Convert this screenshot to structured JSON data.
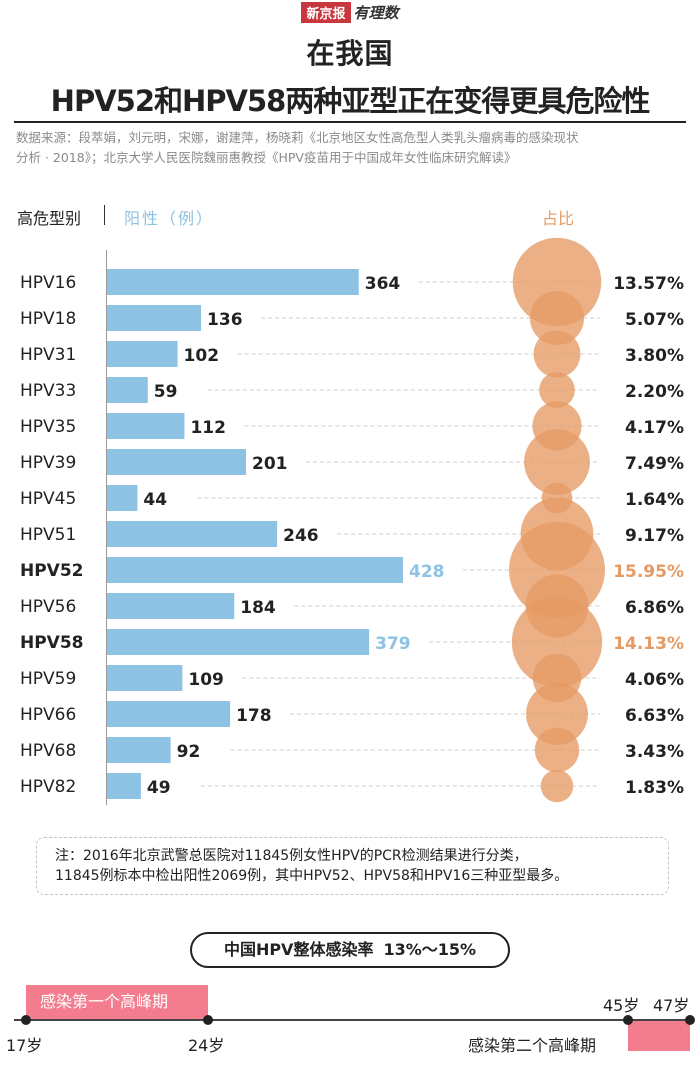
{
  "brand": {
    "name": "新京报",
    "sub": "有理数"
  },
  "title": {
    "line1": "在我国",
    "line2": "HPV52和HPV58两种亚型正在变得更具危险性"
  },
  "source": {
    "line1": "数据来源：段萃娟，刘元明，宋娜，谢建萍，杨晓莉《北京地区女性高危型人类乳头瘤病毒的感染现状",
    "line2": "分析 · 2018》；北京大学人民医院魏丽惠教授《HPV疫苗用于中国成年女性临床研究解读》"
  },
  "columns": {
    "type": "高危型别",
    "positive": "阳性（例）",
    "percent": "占比"
  },
  "colors": {
    "bar": "#8ec2e4",
    "bubble": "#e59a64",
    "peak": "#f37d8e"
  },
  "chart_data": {
    "type": "bar",
    "title": "在我国 HPV52和HPV58两种亚型正在变得更具危险性",
    "xlabel": "阳性（例）",
    "ylabel": "高危型别",
    "categories": [
      "HPV16",
      "HPV18",
      "HPV31",
      "HPV33",
      "HPV35",
      "HPV39",
      "HPV45",
      "HPV51",
      "HPV52",
      "HPV56",
      "HPV58",
      "HPV59",
      "HPV66",
      "HPV68",
      "HPV82"
    ],
    "series": [
      {
        "name": "阳性（例）",
        "values": [
          364,
          136,
          102,
          59,
          112,
          201,
          44,
          246,
          428,
          184,
          379,
          109,
          178,
          92,
          49
        ]
      },
      {
        "name": "占比",
        "values": [
          13.57,
          5.07,
          3.8,
          2.2,
          4.17,
          7.49,
          1.64,
          9.17,
          15.95,
          6.86,
          14.13,
          4.06,
          6.63,
          3.43,
          1.83
        ],
        "labels": [
          "13.57%",
          "5.07%",
          "3.80%",
          "2.20%",
          "4.17%",
          "7.49%",
          "1.64%",
          "9.17%",
          "15.95%",
          "6.86%",
          "14.13%",
          "4.06%",
          "6.63%",
          "3.43%",
          "1.83%"
        ]
      }
    ],
    "highlight": [
      "HPV52",
      "HPV58"
    ],
    "xlim": [
      0,
      428
    ]
  },
  "note": {
    "line1": "注：2016年北京武警总医院对11845例女性HPV的PCR检测结果进行分类，",
    "line2": "11845例标本中检出阳性2069例，其中HPV52、HPV58和HPV16三种亚型最多。"
  },
  "infection_rate": {
    "label": "中国HPV整体感染率",
    "value": "13%～15%"
  },
  "timeline": {
    "peak1_label": "感染第一个高峰期",
    "peak2_label": "感染第二个高峰期",
    "ages": [
      "17岁",
      "24岁",
      "45岁",
      "47岁"
    ]
  }
}
